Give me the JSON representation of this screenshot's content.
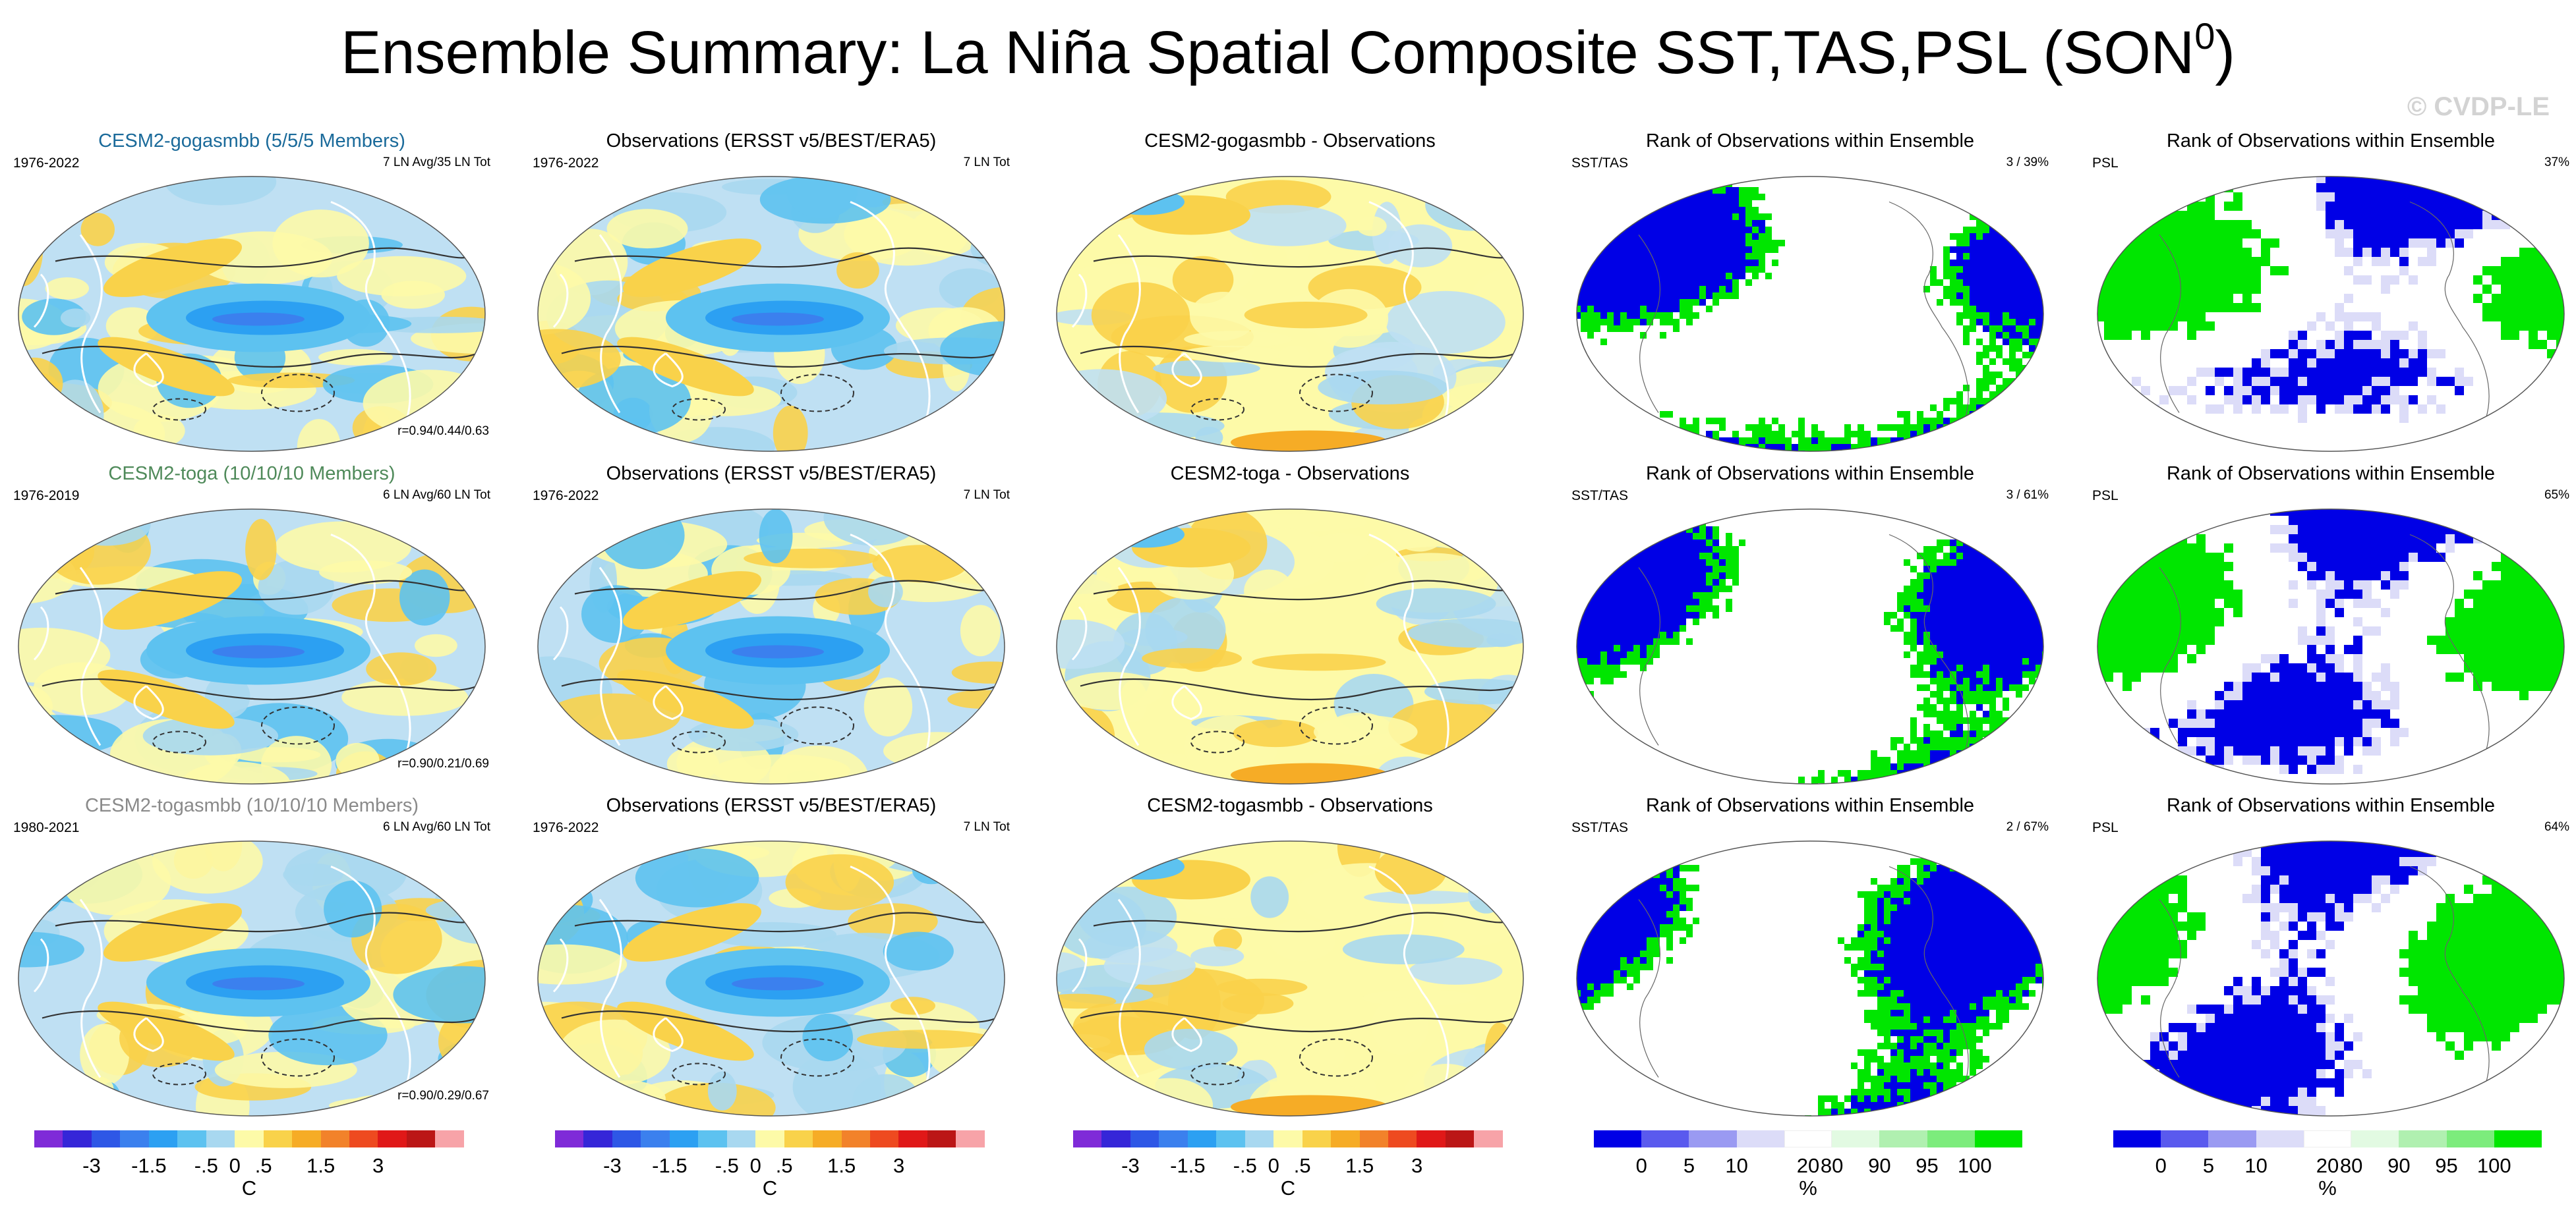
{
  "title_main": "Ensemble Summary: La Niña Spatial Composite SST,TAS,PSL (SON",
  "title_sup": "0",
  "title_end": ")",
  "watermark": "© CVDP-LE",
  "rows": [
    {
      "model": {
        "title": "CESM2-gogasmbb (5/5/5 Members)",
        "title_color": "#1a6a9a",
        "years": "1976-2022",
        "info": "7 LN Avg/35 LN Tot",
        "r": "r=0.94/0.44/0.63"
      },
      "obs": {
        "title": "Observations (ERSST v5/BEST/ERA5)",
        "years": "1976-2022",
        "info": "7 LN Tot"
      },
      "diff": {
        "title": "CESM2-gogasmbb - Observations"
      },
      "rank_sst": {
        "title": "Rank of Observations within Ensemble",
        "label": "SST/TAS",
        "pct": "3 /  39%"
      },
      "rank_psl": {
        "title": "Rank of Observations within Ensemble",
        "label": "PSL",
        "pct": "37%"
      }
    },
    {
      "model": {
        "title": "CESM2-toga (10/10/10 Members)",
        "title_color": "#4f8a5a",
        "years": "1976-2019",
        "info": "6 LN Avg/60 LN Tot",
        "r": "r=0.90/0.21/0.69"
      },
      "obs": {
        "title": "Observations (ERSST v5/BEST/ERA5)",
        "years": "1976-2022",
        "info": "7 LN Tot"
      },
      "diff": {
        "title": "CESM2-toga - Observations"
      },
      "rank_sst": {
        "title": "Rank of Observations within Ensemble",
        "label": "SST/TAS",
        "pct": "3 /  61%"
      },
      "rank_psl": {
        "title": "Rank of Observations within Ensemble",
        "label": "PSL",
        "pct": "65%"
      }
    },
    {
      "model": {
        "title": "CESM2-togasmbb (10/10/10 Members)",
        "title_color": "#8a8a8a",
        "years": "1980-2021",
        "info": "6 LN Avg/60 LN Tot",
        "r": "r=0.90/0.29/0.67"
      },
      "obs": {
        "title": "Observations (ERSST v5/BEST/ERA5)",
        "years": "1976-2022",
        "info": "7 LN Tot"
      },
      "diff": {
        "title": "CESM2-togasmbb - Observations"
      },
      "rank_sst": {
        "title": "Rank of Observations within Ensemble",
        "label": "SST/TAS",
        "pct": "2 /  67%"
      },
      "rank_psl": {
        "title": "Rank of Observations within Ensemble",
        "label": "PSL",
        "pct": "64%"
      }
    }
  ],
  "chart_data": [
    {
      "type": "heatmap",
      "title": "CESM2-gogasmbb (5/5/5 Members)",
      "description_units": "C",
      "pattern": "La Niña composite SST/TAS anomaly with PSL contours; strongest cooling in central-eastern equatorial Pacific",
      "values": {
        "equatorial_pacific_min": -3,
        "typical_range": [
          -1.5,
          1.5
        ]
      }
    },
    {
      "type": "heatmap",
      "title": "Rank of Observations within Ensemble",
      "units": "%",
      "categories": [
        "0",
        "5",
        "10",
        "20",
        "80",
        "90",
        "95",
        "100"
      ]
    }
  ],
  "colorbar_temp": {
    "unit": "C",
    "colors": [
      "#7f2bd8",
      "#3526d8",
      "#2e57e6",
      "#3b80ee",
      "#2ca0f2",
      "#5dc2f0",
      "#a8d8f0",
      "#fdfaa8",
      "#f9d24a",
      "#f6ac26",
      "#f2822a",
      "#ee4a20",
      "#e01818",
      "#bb1616",
      "#f7a3a8"
    ],
    "ticks": [
      "-3",
      "-1.5",
      "-.5",
      "0",
      ".5",
      "1.5",
      "3"
    ],
    "tick_boundaries": [
      2,
      4,
      6,
      7,
      8,
      10,
      12
    ]
  },
  "colorbar_rank": {
    "unit": "%",
    "colors": [
      "#0000e6",
      "#5a5aee",
      "#9a9af2",
      "#dcdcf8",
      "#ffffff",
      "#e2fae2",
      "#b0f0b0",
      "#7cec7c",
      "#00e600"
    ],
    "ticks": [
      "0",
      "5",
      "10",
      "20",
      "80",
      "90",
      "95",
      "100"
    ],
    "tick_boundaries": [
      1,
      2,
      3,
      4.5,
      5,
      6,
      7,
      8
    ]
  }
}
